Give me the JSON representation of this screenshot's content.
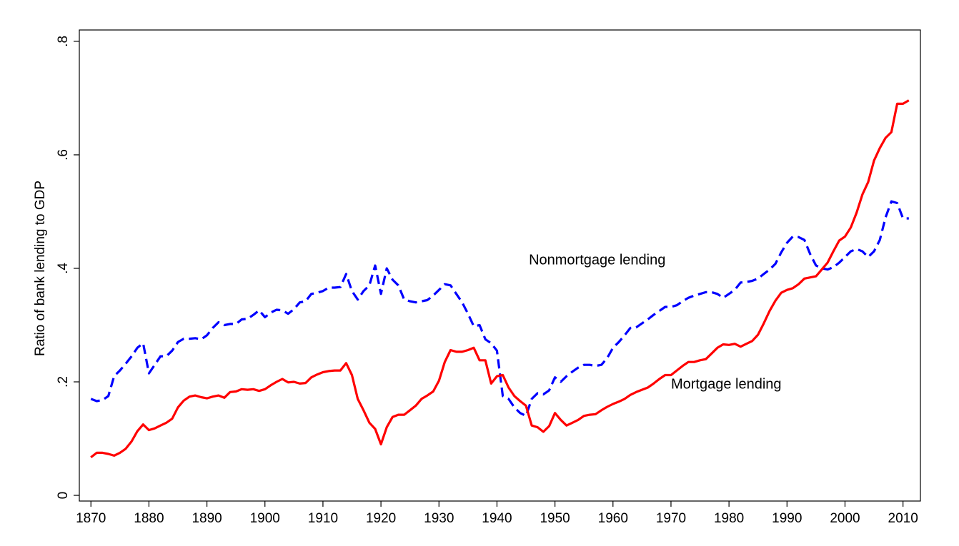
{
  "chart_data": {
    "type": "line",
    "title": "",
    "xlabel": "",
    "ylabel": "Ratio of bank lending to GDP",
    "xlim": [
      1868,
      2013
    ],
    "ylim": [
      -0.01,
      0.82
    ],
    "x_ticks": [
      1870,
      1880,
      1890,
      1900,
      1910,
      1920,
      1930,
      1940,
      1950,
      1960,
      1970,
      1980,
      1990,
      2000,
      2010
    ],
    "x_tick_labels": [
      "1870",
      "1880",
      "1890",
      "1900",
      "1910",
      "1920",
      "1930",
      "1940",
      "1950",
      "1960",
      "1970",
      "1980",
      "1990",
      "2000",
      "2010"
    ],
    "y_ticks": [
      0,
      0.2,
      0.4,
      0.6,
      0.8
    ],
    "y_tick_labels": [
      "0",
      ".2",
      ".4",
      ".6",
      ".8"
    ],
    "grid": false,
    "legend": "none",
    "annotations": [
      {
        "text": "Nonmortgage lending",
        "x": 1945.5,
        "y": 0.407
      },
      {
        "text": "Mortgage lending",
        "x": 1970,
        "y": 0.188
      }
    ],
    "series": [
      {
        "label": "Nonmortgage lending",
        "color": "#0000FF",
        "dash": "dashed",
        "x": [
          1870,
          1871,
          1872,
          1873,
          1874,
          1875,
          1876,
          1877,
          1878,
          1879,
          1880,
          1881,
          1882,
          1883,
          1884,
          1885,
          1886,
          1887,
          1888,
          1889,
          1890,
          1891,
          1892,
          1893,
          1894,
          1895,
          1896,
          1897,
          1898,
          1899,
          1900,
          1901,
          1902,
          1903,
          1904,
          1905,
          1906,
          1907,
          1908,
          1909,
          1910,
          1911,
          1912,
          1913,
          1914,
          1915,
          1916,
          1917,
          1918,
          1919,
          1920,
          1921,
          1922,
          1923,
          1924,
          1925,
          1926,
          1927,
          1928,
          1929,
          1930,
          1931,
          1932,
          1933,
          1934,
          1935,
          1936,
          1937,
          1938,
          1939,
          1940,
          1941,
          1942,
          1943,
          1944,
          1945,
          1946,
          1947,
          1948,
          1949,
          1950,
          1951,
          1952,
          1953,
          1954,
          1955,
          1956,
          1957,
          1958,
          1959,
          1960,
          1961,
          1962,
          1963,
          1964,
          1965,
          1966,
          1967,
          1968,
          1969,
          1970,
          1971,
          1972,
          1973,
          1974,
          1975,
          1976,
          1977,
          1978,
          1979,
          1980,
          1981,
          1982,
          1983,
          1984,
          1985,
          1986,
          1987,
          1988,
          1989,
          1990,
          1991,
          1992,
          1993,
          1994,
          1995,
          1996,
          1997,
          1998,
          1999,
          2000,
          2001,
          2002,
          2003,
          2004,
          2005,
          2006,
          2007,
          2008,
          2009,
          2010,
          2011
        ],
        "y": [
          0.17,
          0.166,
          0.168,
          0.175,
          0.21,
          0.22,
          0.232,
          0.245,
          0.26,
          0.268,
          0.215,
          0.23,
          0.245,
          0.245,
          0.255,
          0.27,
          0.276,
          0.276,
          0.277,
          0.275,
          0.282,
          0.295,
          0.305,
          0.3,
          0.302,
          0.302,
          0.31,
          0.311,
          0.318,
          0.326,
          0.314,
          0.322,
          0.327,
          0.326,
          0.32,
          0.328,
          0.34,
          0.342,
          0.355,
          0.357,
          0.36,
          0.366,
          0.366,
          0.367,
          0.39,
          0.36,
          0.345,
          0.36,
          0.37,
          0.405,
          0.355,
          0.4,
          0.38,
          0.37,
          0.345,
          0.342,
          0.34,
          0.342,
          0.344,
          0.352,
          0.362,
          0.372,
          0.37,
          0.355,
          0.34,
          0.32,
          0.298,
          0.3,
          0.275,
          0.268,
          0.255,
          0.175,
          0.17,
          0.155,
          0.145,
          0.14,
          0.17,
          0.18,
          0.178,
          0.185,
          0.208,
          0.2,
          0.21,
          0.218,
          0.225,
          0.23,
          0.23,
          0.228,
          0.23,
          0.242,
          0.26,
          0.27,
          0.282,
          0.295,
          0.296,
          0.303,
          0.31,
          0.318,
          0.325,
          0.332,
          0.332,
          0.335,
          0.342,
          0.348,
          0.352,
          0.355,
          0.358,
          0.358,
          0.355,
          0.348,
          0.355,
          0.362,
          0.375,
          0.376,
          0.378,
          0.382,
          0.39,
          0.398,
          0.408,
          0.428,
          0.445,
          0.456,
          0.455,
          0.45,
          0.425,
          0.405,
          0.4,
          0.398,
          0.402,
          0.41,
          0.42,
          0.43,
          0.434,
          0.43,
          0.42,
          0.43,
          0.45,
          0.49,
          0.518,
          0.515,
          0.488,
          0.488
        ]
      },
      {
        "label": "Mortgage lending",
        "color": "#FF0000",
        "dash": "solid",
        "x": [
          1870,
          1871,
          1872,
          1873,
          1874,
          1875,
          1876,
          1877,
          1878,
          1879,
          1880,
          1881,
          1882,
          1883,
          1884,
          1885,
          1886,
          1887,
          1888,
          1889,
          1890,
          1891,
          1892,
          1893,
          1894,
          1895,
          1896,
          1897,
          1898,
          1899,
          1900,
          1901,
          1902,
          1903,
          1904,
          1905,
          1906,
          1907,
          1908,
          1909,
          1910,
          1911,
          1912,
          1913,
          1914,
          1915,
          1916,
          1917,
          1918,
          1919,
          1920,
          1921,
          1922,
          1923,
          1924,
          1925,
          1926,
          1927,
          1928,
          1929,
          1930,
          1931,
          1932,
          1933,
          1934,
          1935,
          1936,
          1937,
          1938,
          1939,
          1940,
          1941,
          1942,
          1943,
          1944,
          1945,
          1946,
          1947,
          1948,
          1949,
          1950,
          1951,
          1952,
          1953,
          1954,
          1955,
          1956,
          1957,
          1958,
          1959,
          1960,
          1961,
          1962,
          1963,
          1964,
          1965,
          1966,
          1967,
          1968,
          1969,
          1970,
          1971,
          1972,
          1973,
          1974,
          1975,
          1976,
          1977,
          1978,
          1979,
          1980,
          1981,
          1982,
          1983,
          1984,
          1985,
          1986,
          1987,
          1988,
          1989,
          1990,
          1991,
          1992,
          1993,
          1994,
          1995,
          1996,
          1997,
          1998,
          1999,
          2000,
          2001,
          2002,
          2003,
          2004,
          2005,
          2006,
          2007,
          2008,
          2009,
          2010,
          2011
        ],
        "y": [
          0.067,
          0.075,
          0.075,
          0.073,
          0.07,
          0.075,
          0.082,
          0.095,
          0.113,
          0.125,
          0.115,
          0.118,
          0.123,
          0.128,
          0.135,
          0.155,
          0.167,
          0.174,
          0.176,
          0.173,
          0.171,
          0.174,
          0.176,
          0.172,
          0.182,
          0.183,
          0.187,
          0.186,
          0.187,
          0.184,
          0.187,
          0.194,
          0.2,
          0.205,
          0.199,
          0.2,
          0.197,
          0.198,
          0.208,
          0.213,
          0.217,
          0.219,
          0.22,
          0.22,
          0.233,
          0.212,
          0.17,
          0.15,
          0.128,
          0.117,
          0.09,
          0.12,
          0.138,
          0.142,
          0.142,
          0.15,
          0.158,
          0.17,
          0.176,
          0.183,
          0.202,
          0.235,
          0.256,
          0.253,
          0.253,
          0.256,
          0.26,
          0.238,
          0.238,
          0.197,
          0.21,
          0.212,
          0.19,
          0.175,
          0.166,
          0.158,
          0.123,
          0.12,
          0.112,
          0.122,
          0.145,
          0.133,
          0.123,
          0.128,
          0.133,
          0.14,
          0.142,
          0.143,
          0.15,
          0.156,
          0.161,
          0.165,
          0.17,
          0.177,
          0.182,
          0.186,
          0.19,
          0.197,
          0.205,
          0.212,
          0.212,
          0.22,
          0.228,
          0.235,
          0.235,
          0.238,
          0.24,
          0.25,
          0.26,
          0.266,
          0.265,
          0.267,
          0.262,
          0.267,
          0.272,
          0.283,
          0.303,
          0.325,
          0.343,
          0.357,
          0.362,
          0.365,
          0.372,
          0.382,
          0.384,
          0.386,
          0.398,
          0.41,
          0.43,
          0.449,
          0.456,
          0.472,
          0.498,
          0.53,
          0.552,
          0.59,
          0.612,
          0.63,
          0.64,
          0.69,
          0.69,
          0.696
        ]
      }
    ]
  }
}
